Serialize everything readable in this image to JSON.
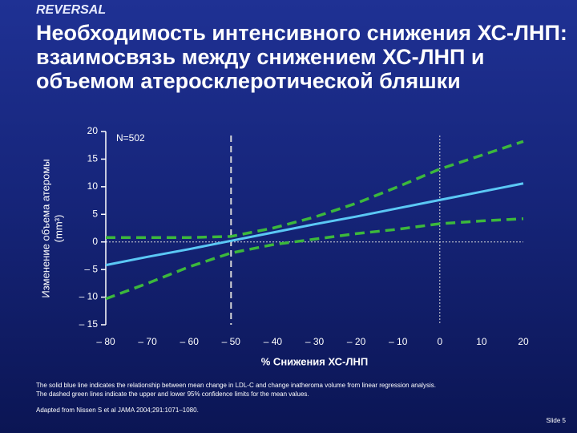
{
  "header": {
    "brand": "REVERSAL"
  },
  "chart_data": {
    "type": "line",
    "title": "Необходимость интенсивного снижения ХС-ЛНП: взаимосвязь между снижением ХС-ЛНП и объемом атеросклеротической бляшки",
    "annotation": "N=502",
    "xlabel": "% Снижения ХС-ЛНП",
    "ylabel": [
      "Изменение объема атеромы",
      "(mm³)"
    ],
    "x": [
      -80,
      -70,
      -60,
      -50,
      -40,
      -30,
      -20,
      -10,
      0,
      10,
      20
    ],
    "series": [
      {
        "color": "#5bc8f5",
        "style": "solid",
        "values": [
          -4.2,
          -2.7,
          -1.3,
          0.2,
          1.7,
          3.2,
          4.6,
          6.1,
          7.6,
          9.1,
          10.6
        ]
      },
      {
        "color": "#3cb83c",
        "style": "dashed",
        "values": [
          0.8,
          0.8,
          0.8,
          1.0,
          2.5,
          4.5,
          7.0,
          10.0,
          13.2,
          15.7,
          18.2
        ]
      },
      {
        "color": "#3cb83c",
        "style": "dashed",
        "values": [
          -10.3,
          -7.5,
          -4.5,
          -2.0,
          -0.5,
          0.5,
          1.5,
          2.3,
          3.3,
          3.8,
          4.2
        ]
      }
    ],
    "xlim": [
      -80,
      20
    ],
    "xticks": [
      {
        "value": -80,
        "label": "– 80"
      },
      {
        "value": -70,
        "label": "– 70"
      },
      {
        "value": -60,
        "label": "– 60"
      },
      {
        "value": -50,
        "label": "– 50"
      },
      {
        "value": -40,
        "label": "– 40"
      },
      {
        "value": -30,
        "label": "– 30"
      },
      {
        "value": -20,
        "label": "– 20"
      },
      {
        "value": -10,
        "label": "– 10"
      },
      0,
      10,
      20
    ],
    "ylim": [
      -15,
      20
    ],
    "yticks": [
      {
        "value": -15,
        "label": "– 15"
      },
      {
        "value": -10,
        "label": "– 10"
      },
      {
        "value": -5,
        "label": "– 5"
      },
      0,
      5,
      10,
      15,
      20
    ],
    "reference_x": [
      -50,
      0
    ],
    "reference_y": [
      0
    ]
  },
  "footer": {
    "notes": [
      "The solid blue line indicates the relationship between mean change in LDL-C and change inatheroma volume from linear regression analysis.",
      "The dashed green lines indicate the upper and lower 95% confidence limits for the mean values."
    ],
    "source": "Adapted from Nissen S et al JAMA 2004;291:1071–1080.",
    "slide": "Slide 5"
  }
}
